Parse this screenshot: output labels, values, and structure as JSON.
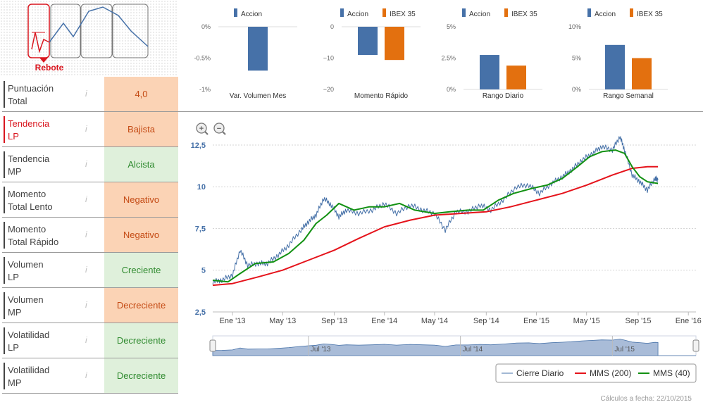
{
  "pattern": {
    "label": "Rebote"
  },
  "indicators": [
    {
      "name_line1": "Puntuación",
      "name_line2": "Total",
      "value": "4,0",
      "tone": "orange",
      "selected": false
    },
    {
      "name_line1": "Tendencia",
      "name_line2": "LP",
      "value": "Bajista",
      "tone": "orange",
      "selected": true
    },
    {
      "name_line1": "Tendencia",
      "name_line2": "MP",
      "value": "Alcista",
      "tone": "green",
      "selected": false
    },
    {
      "name_line1": "Momento",
      "name_line2": "Total Lento",
      "value": "Negativo",
      "tone": "orange",
      "selected": false
    },
    {
      "name_line1": "Momento",
      "name_line2": "Total Rápido",
      "value": "Negativo",
      "tone": "orange",
      "selected": false
    },
    {
      "name_line1": "Volumen",
      "name_line2": "LP",
      "value": "Creciente",
      "tone": "green",
      "selected": false
    },
    {
      "name_line1": "Volumen",
      "name_line2": "MP",
      "value": "Decreciente",
      "tone": "orange",
      "selected": false
    },
    {
      "name_line1": "Volatilidad",
      "name_line2": "LP",
      "value": "Decreciente",
      "tone": "green",
      "selected": false
    },
    {
      "name_line1": "Volatilidad",
      "name_line2": "MP",
      "value": "Decreciente",
      "tone": "green",
      "selected": false
    }
  ],
  "info_glyph": "i",
  "colors": {
    "accion": "#4671a8",
    "ibex": "#e3700f",
    "cierre": "#4671a8",
    "mms200": "#e5131b",
    "mms40": "#129112",
    "orange_bg": "#fbd3b5",
    "green_bg": "#dff0db",
    "red": "#d9161f"
  },
  "chart_data": [
    {
      "type": "bar",
      "title": "Var. Volumen Mes",
      "series": [
        {
          "name": "Accion",
          "values": [
            -0.7
          ]
        }
      ],
      "ylim": [
        -1,
        0
      ],
      "yticks": [
        0,
        -0.5,
        -1
      ],
      "ytick_labels": [
        "0%",
        "-0.5%",
        "-1%"
      ]
    },
    {
      "type": "bar",
      "title": "Momento Rápido",
      "series": [
        {
          "name": "Accion",
          "values": [
            -9
          ]
        },
        {
          "name": "IBEX 35",
          "values": [
            -10.6
          ]
        }
      ],
      "ylim": [
        -20,
        0
      ],
      "yticks": [
        0,
        -10,
        -20
      ],
      "ytick_labels": [
        "0",
        "−10",
        "−20"
      ]
    },
    {
      "type": "bar",
      "title": "Rango Diario",
      "series": [
        {
          "name": "Accion",
          "values": [
            2.75
          ]
        },
        {
          "name": "IBEX 35",
          "values": [
            1.9
          ]
        }
      ],
      "ylim": [
        0,
        5
      ],
      "yticks": [
        5,
        2.5,
        0
      ],
      "ytick_labels": [
        "5%",
        "2.5%",
        "0%"
      ]
    },
    {
      "type": "bar",
      "title": "Rango Semanal",
      "series": [
        {
          "name": "Accion",
          "values": [
            7.1
          ]
        },
        {
          "name": "IBEX 35",
          "values": [
            5.0
          ]
        }
      ],
      "ylim": [
        0,
        10
      ],
      "yticks": [
        10,
        5,
        0
      ],
      "ytick_labels": [
        "10%",
        "5%",
        "0%"
      ]
    },
    {
      "type": "line",
      "title": "",
      "ylim": [
        2.5,
        13.3
      ],
      "yticks": [
        2.5,
        5,
        7.5,
        10,
        12.5
      ],
      "ytick_labels": [
        "2,5",
        "5",
        "7,5",
        "10",
        "12,5"
      ],
      "xlim": [
        2012.87,
        2016.05
      ],
      "xticks": [
        2013.0,
        2013.33,
        2013.67,
        2014.0,
        2014.33,
        2014.67,
        2015.0,
        2015.33,
        2015.67,
        2016.0
      ],
      "xtick_labels": [
        "Ene '13",
        "May '13",
        "Sep '13",
        "Ene '14",
        "May '14",
        "Sep '14",
        "Ene '15",
        "May '15",
        "Sep '15",
        "Ene '16"
      ],
      "series": [
        {
          "name": "Cierre Diario",
          "x": [
            2012.87,
            2012.93,
            2013.0,
            2013.05,
            2013.1,
            2013.17,
            2013.23,
            2013.3,
            2013.37,
            2013.45,
            2013.5,
            2013.55,
            2013.6,
            2013.65,
            2013.7,
            2013.75,
            2013.83,
            2013.92,
            2014.0,
            2014.08,
            2014.17,
            2014.25,
            2014.33,
            2014.4,
            2014.47,
            2014.55,
            2014.63,
            2014.7,
            2014.78,
            2014.87,
            2014.95,
            2015.02,
            2015.1,
            2015.17,
            2015.23,
            2015.3,
            2015.37,
            2015.43,
            2015.5,
            2015.55,
            2015.58,
            2015.63,
            2015.68,
            2015.73,
            2015.78,
            2015.8
          ],
          "y": [
            4.3,
            4.4,
            4.7,
            6.2,
            5.3,
            5.4,
            5.4,
            5.9,
            6.5,
            7.4,
            7.9,
            8.3,
            9.3,
            8.9,
            8.2,
            8.6,
            8.4,
            8.6,
            9.0,
            8.4,
            8.9,
            8.6,
            8.4,
            7.4,
            8.5,
            8.5,
            8.9,
            8.6,
            9.2,
            10.0,
            10.1,
            9.6,
            10.2,
            10.6,
            11.0,
            11.6,
            12.0,
            12.4,
            12.2,
            13.0,
            12.2,
            10.7,
            10.3,
            9.8,
            10.5,
            10.4
          ]
        },
        {
          "name": "MMS (200)",
          "x": [
            2012.87,
            2013.0,
            2013.17,
            2013.33,
            2013.5,
            2013.67,
            2013.83,
            2014.0,
            2014.17,
            2014.33,
            2014.5,
            2014.67,
            2014.83,
            2015.0,
            2015.17,
            2015.33,
            2015.5,
            2015.63,
            2015.73,
            2015.8
          ],
          "y": [
            4.1,
            4.2,
            4.6,
            5.0,
            5.6,
            6.2,
            6.9,
            7.6,
            8.0,
            8.3,
            8.4,
            8.5,
            8.8,
            9.2,
            9.6,
            10.1,
            10.7,
            11.1,
            11.2,
            11.2
          ]
        },
        {
          "name": "MMS (40)",
          "x": [
            2012.87,
            2012.97,
            2013.05,
            2013.15,
            2013.27,
            2013.37,
            2013.47,
            2013.55,
            2013.62,
            2013.7,
            2013.8,
            2013.9,
            2014.0,
            2014.1,
            2014.2,
            2014.33,
            2014.43,
            2014.55,
            2014.65,
            2014.75,
            2014.85,
            2014.97,
            2015.07,
            2015.17,
            2015.27,
            2015.35,
            2015.43,
            2015.52,
            2015.58,
            2015.63,
            2015.68,
            2015.73,
            2015.8
          ],
          "y": [
            4.4,
            4.3,
            4.8,
            5.4,
            5.5,
            6.0,
            6.8,
            7.8,
            8.3,
            9.0,
            8.6,
            8.8,
            8.8,
            9.0,
            8.6,
            8.4,
            8.5,
            8.6,
            8.6,
            9.2,
            9.6,
            9.9,
            10.1,
            10.5,
            11.2,
            11.8,
            12.1,
            12.2,
            12.0,
            11.2,
            10.6,
            10.3,
            10.2
          ]
        }
      ],
      "navigator_labels": [
        "Jul '13",
        "Jul '14",
        "Jul '15"
      ],
      "navigator_ticks": [
        2013.5,
        2014.5,
        2015.5
      ],
      "legend": [
        "Cierre Diario",
        "MMS (200)",
        "MMS (40)"
      ]
    }
  ],
  "footnote": "Cálculos a fecha: 22/10/2015"
}
